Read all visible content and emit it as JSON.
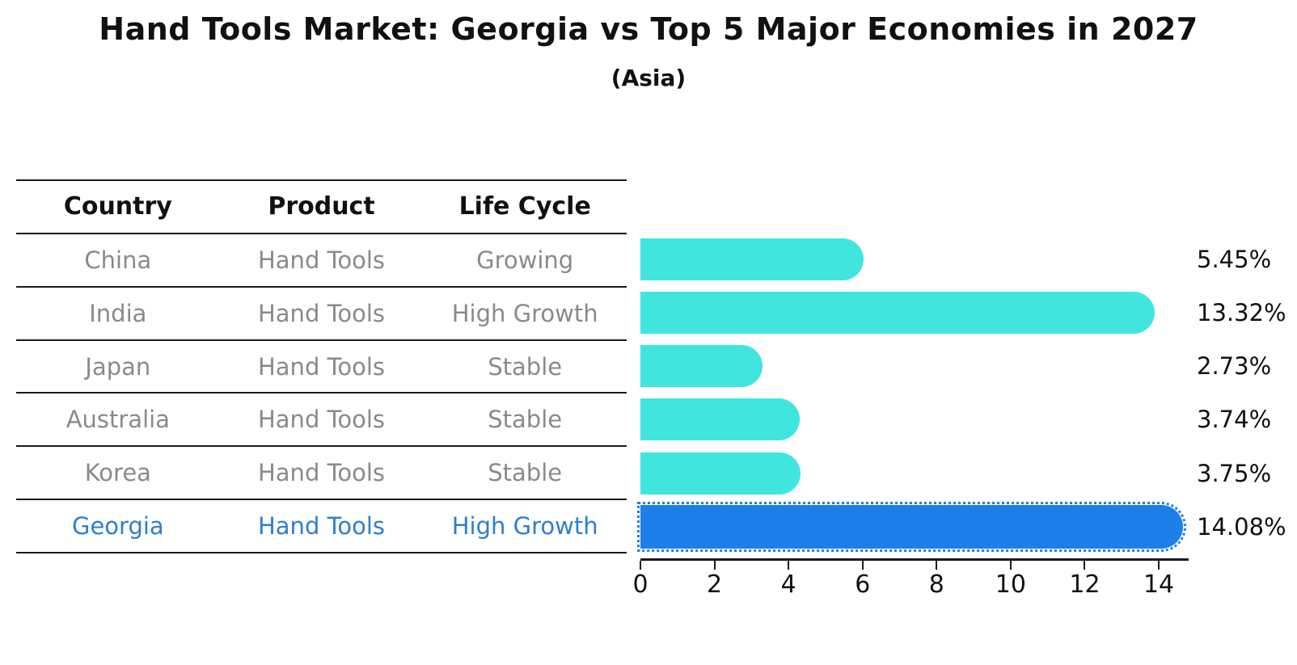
{
  "title": "Hand Tools Market: Georgia vs Top 5 Major Economies in 2027",
  "subtitle": "(Asia)",
  "table": {
    "headers": [
      "Country",
      "Product",
      "Life Cycle"
    ],
    "rows": [
      {
        "country": "China",
        "product": "Hand Tools",
        "life_cycle": "Growing",
        "highlight": false
      },
      {
        "country": "India",
        "product": "Hand Tools",
        "life_cycle": "High Growth",
        "highlight": false
      },
      {
        "country": "Japan",
        "product": "Hand Tools",
        "life_cycle": "Stable",
        "highlight": false
      },
      {
        "country": "Australia",
        "product": "Hand Tools",
        "life_cycle": "Stable",
        "highlight": false
      },
      {
        "country": "Korea",
        "product": "Hand Tools",
        "life_cycle": "Stable",
        "highlight": false
      },
      {
        "country": "Georgia",
        "product": "Hand Tools",
        "life_cycle": "High Growth",
        "highlight": true
      }
    ]
  },
  "chart_data": {
    "type": "bar",
    "orientation": "horizontal",
    "title": "Hand Tools Market: Georgia vs Top 5 Major Economies in 2027",
    "subtitle": "(Asia)",
    "categories": [
      "China",
      "India",
      "Japan",
      "Australia",
      "Korea",
      "Georgia"
    ],
    "values": [
      5.45,
      13.32,
      2.73,
      3.74,
      3.75,
      14.08
    ],
    "labels": [
      "5.45%",
      "13.32%",
      "2.73%",
      "3.74%",
      "3.75%",
      "14.08%"
    ],
    "xlim": [
      0,
      14.8
    ],
    "xticks": [
      0,
      2,
      4,
      6,
      8,
      10,
      12,
      14
    ],
    "grid": false,
    "legend": false,
    "bar_color": "#40E6DE",
    "highlight_color": "#1E7FE8",
    "highlight_index": 5
  },
  "colors": {
    "bar": "#40E6DE",
    "highlight_bar": "#1E7FE8",
    "highlight_text": "#2E7FD0",
    "table_text": "#8A8A8A",
    "line": "#1a1a1a"
  }
}
